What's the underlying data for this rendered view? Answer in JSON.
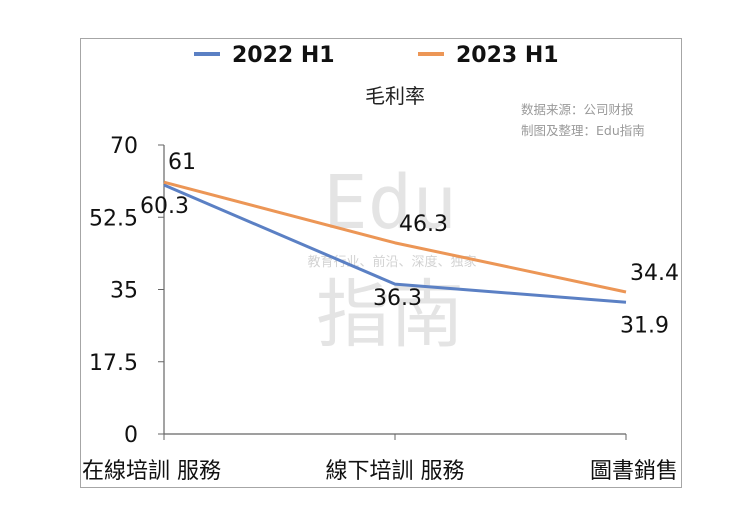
{
  "chart_data": {
    "type": "line",
    "title": "毛利率",
    "categories": [
      "在線培訓 服務",
      "線下培訓 服務",
      "圖書銷售"
    ],
    "series": [
      {
        "name": "2022 H1",
        "values": [
          60.3,
          36.3,
          31.9
        ],
        "color": "#5b80c4"
      },
      {
        "name": "2023 H1",
        "values": [
          61,
          46.3,
          34.4
        ],
        "color": "#ec9656"
      }
    ],
    "yticks": [
      "0",
      "17.5",
      "35",
      "52.5",
      "70"
    ],
    "ylim": [
      0,
      70
    ],
    "grid": false,
    "legend_position": "top"
  },
  "source_lines": [
    "数据来源：公司财报",
    "制图及整理：Edu指南"
  ],
  "watermark": {
    "big_line1": "Edu",
    "big_line2": "指南",
    "tagline": "教育行业、前沿、深度、独家"
  }
}
